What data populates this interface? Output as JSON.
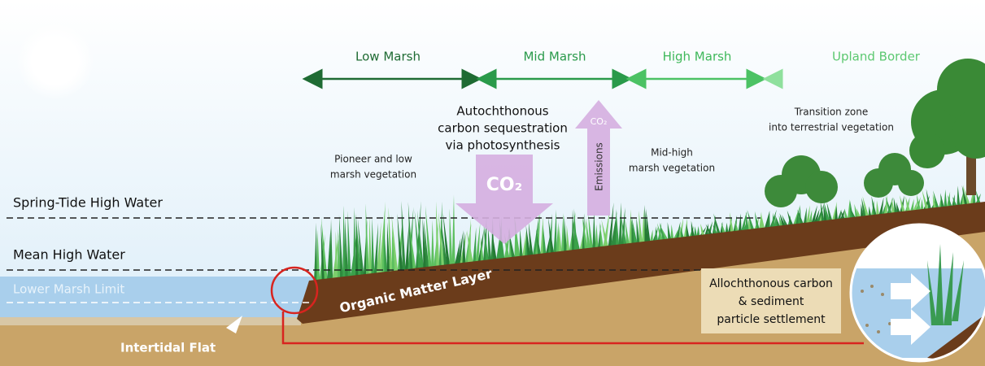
{
  "zones": [
    "Low Marsh",
    "Mid Marsh",
    "High Marsh",
    "Upland Border"
  ],
  "water_levels": {
    "spring_tide": "Spring-Tide High Water",
    "mean_high": "Mean High Water",
    "lower_limit": "Lower Marsh Limit"
  },
  "sequestration": [
    "Autochthonous",
    "carbon sequestration",
    "via photosynthesis"
  ],
  "co2_down": "CO₂",
  "co2_up": "CO₂",
  "emissions": "Emissions",
  "pioneer": [
    "Pioneer and low",
    "marsh vegetation"
  ],
  "mid_high": [
    "Mid-high",
    "marsh vegetation"
  ],
  "transition": [
    "Transition zone",
    "into terrestrial vegetation"
  ],
  "organic_layer": "Organic Matter Layer",
  "intertidal": "Intertidal Flat",
  "allochthonous": [
    "Allochthonous carbon",
    "& sediment",
    "particle settlement"
  ]
}
